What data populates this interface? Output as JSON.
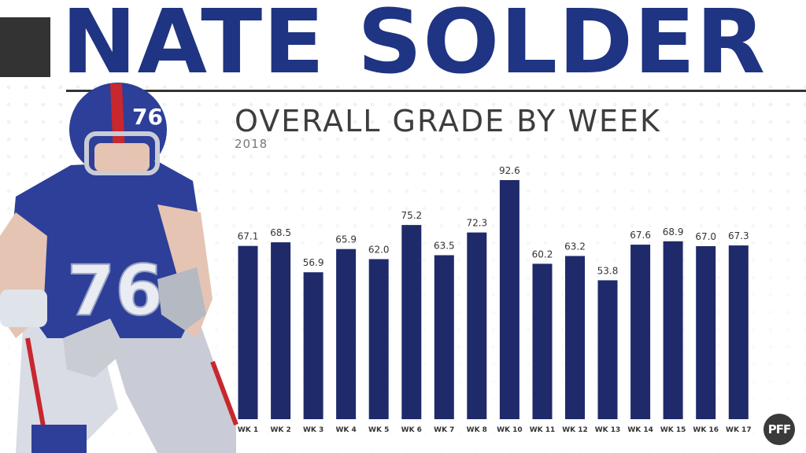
{
  "header": {
    "title": "NATE SOLDER",
    "subtitle": "OVERALL GRADE BY WEEK",
    "year": "2018"
  },
  "branding": {
    "logo_text": "PFF"
  },
  "colors": {
    "bar": "#1f2a6b",
    "title": "#1f3482",
    "jersey": "#2d3f99"
  },
  "chart_data": {
    "type": "bar",
    "title": "OVERALL GRADE BY WEEK",
    "subtitle": "2018",
    "categories": [
      "WK 1",
      "WK 2",
      "WK 3",
      "WK 4",
      "WK 5",
      "WK 6",
      "WK 7",
      "WK 8",
      "WK 10",
      "WK 11",
      "WK 12",
      "WK 13",
      "WK 14",
      "WK 15",
      "WK 16",
      "WK 17"
    ],
    "values": [
      67.1,
      68.5,
      56.9,
      65.9,
      62.0,
      75.2,
      63.5,
      72.3,
      92.6,
      60.2,
      63.2,
      53.8,
      67.6,
      68.9,
      67.0,
      67.3
    ],
    "value_labels": [
      "67.1",
      "68.5",
      "56.9",
      "65.9",
      "62.0",
      "75.2",
      "63.5",
      "72.3",
      "92.6",
      "60.2",
      "63.2",
      "53.8",
      "67.6",
      "68.9",
      "67.0",
      "67.3"
    ],
    "ylim": [
      0,
      100
    ],
    "xlabel": "",
    "ylabel": "",
    "grid": false
  }
}
